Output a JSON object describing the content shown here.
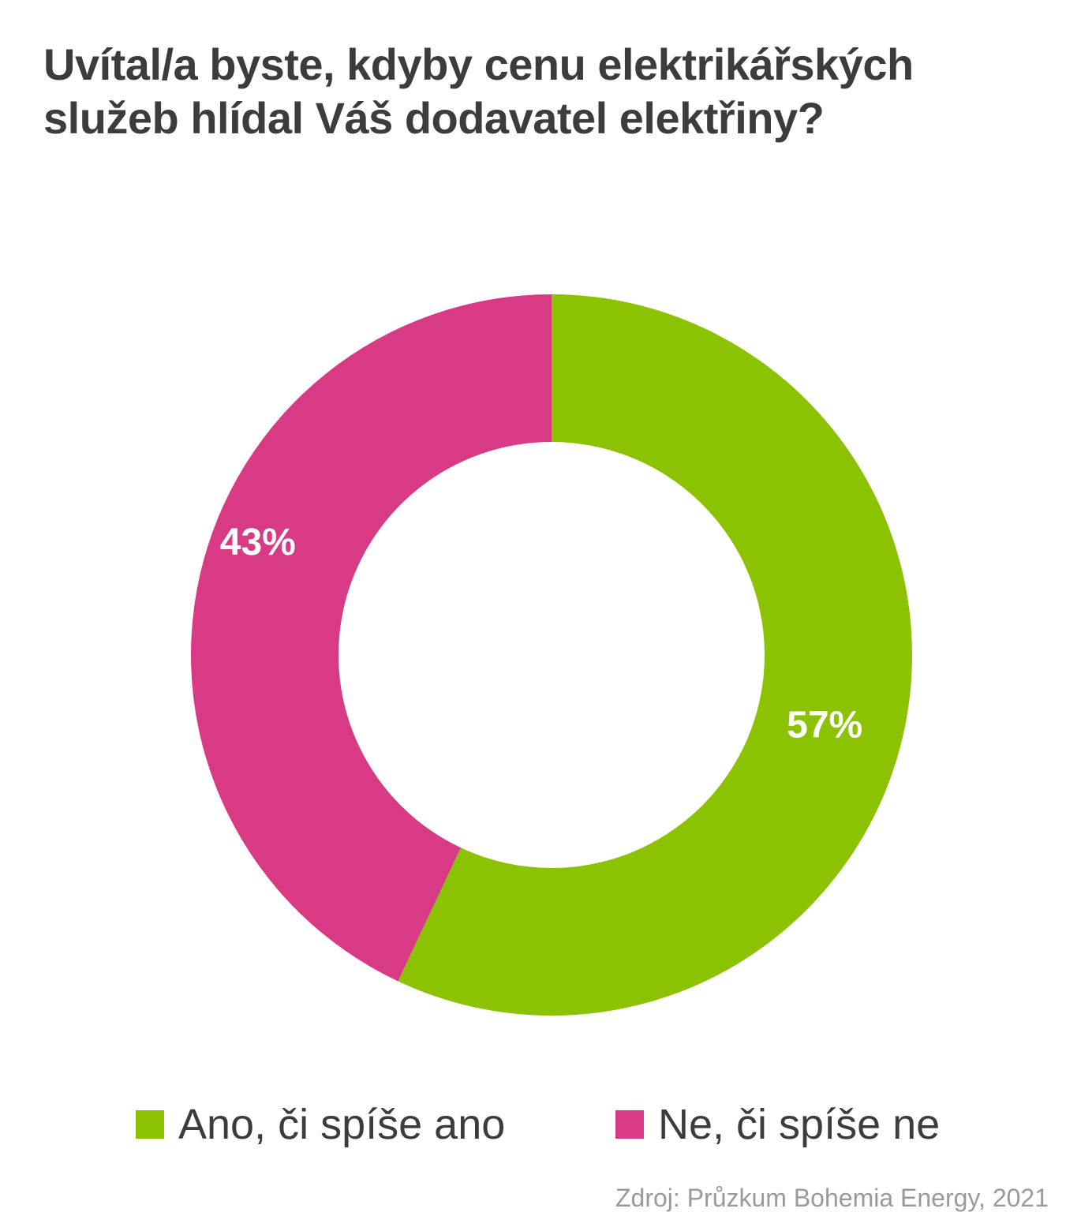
{
  "colors": {
    "yes": "#8bc202",
    "no": "#d83a85",
    "title_text": "#3c3c3c",
    "source_text": "#9a9a9a"
  },
  "chart_data": {
    "type": "pie",
    "variant": "donut",
    "title_lines": [
      "Uvítal/a byste, kdyby cenu elektrikářských",
      "služeb hlídal Váš dodavatel elektřiny?"
    ],
    "categories": [
      "Ano, či spíše ano",
      "Ne, či spíše ne"
    ],
    "values": [
      57,
      43
    ],
    "labels": [
      "57%",
      "43%"
    ],
    "unit": "%",
    "start_angle_deg": 0,
    "direction": "clockwise",
    "legend_position": "bottom"
  },
  "legend": [
    {
      "label": "Ano, či spíše ano",
      "color": "#8bc202"
    },
    {
      "label": "Ne, či spíše ne",
      "color": "#d83a85"
    }
  ],
  "source": "Zdroj: Průzkum Bohemia Energy, 2021"
}
